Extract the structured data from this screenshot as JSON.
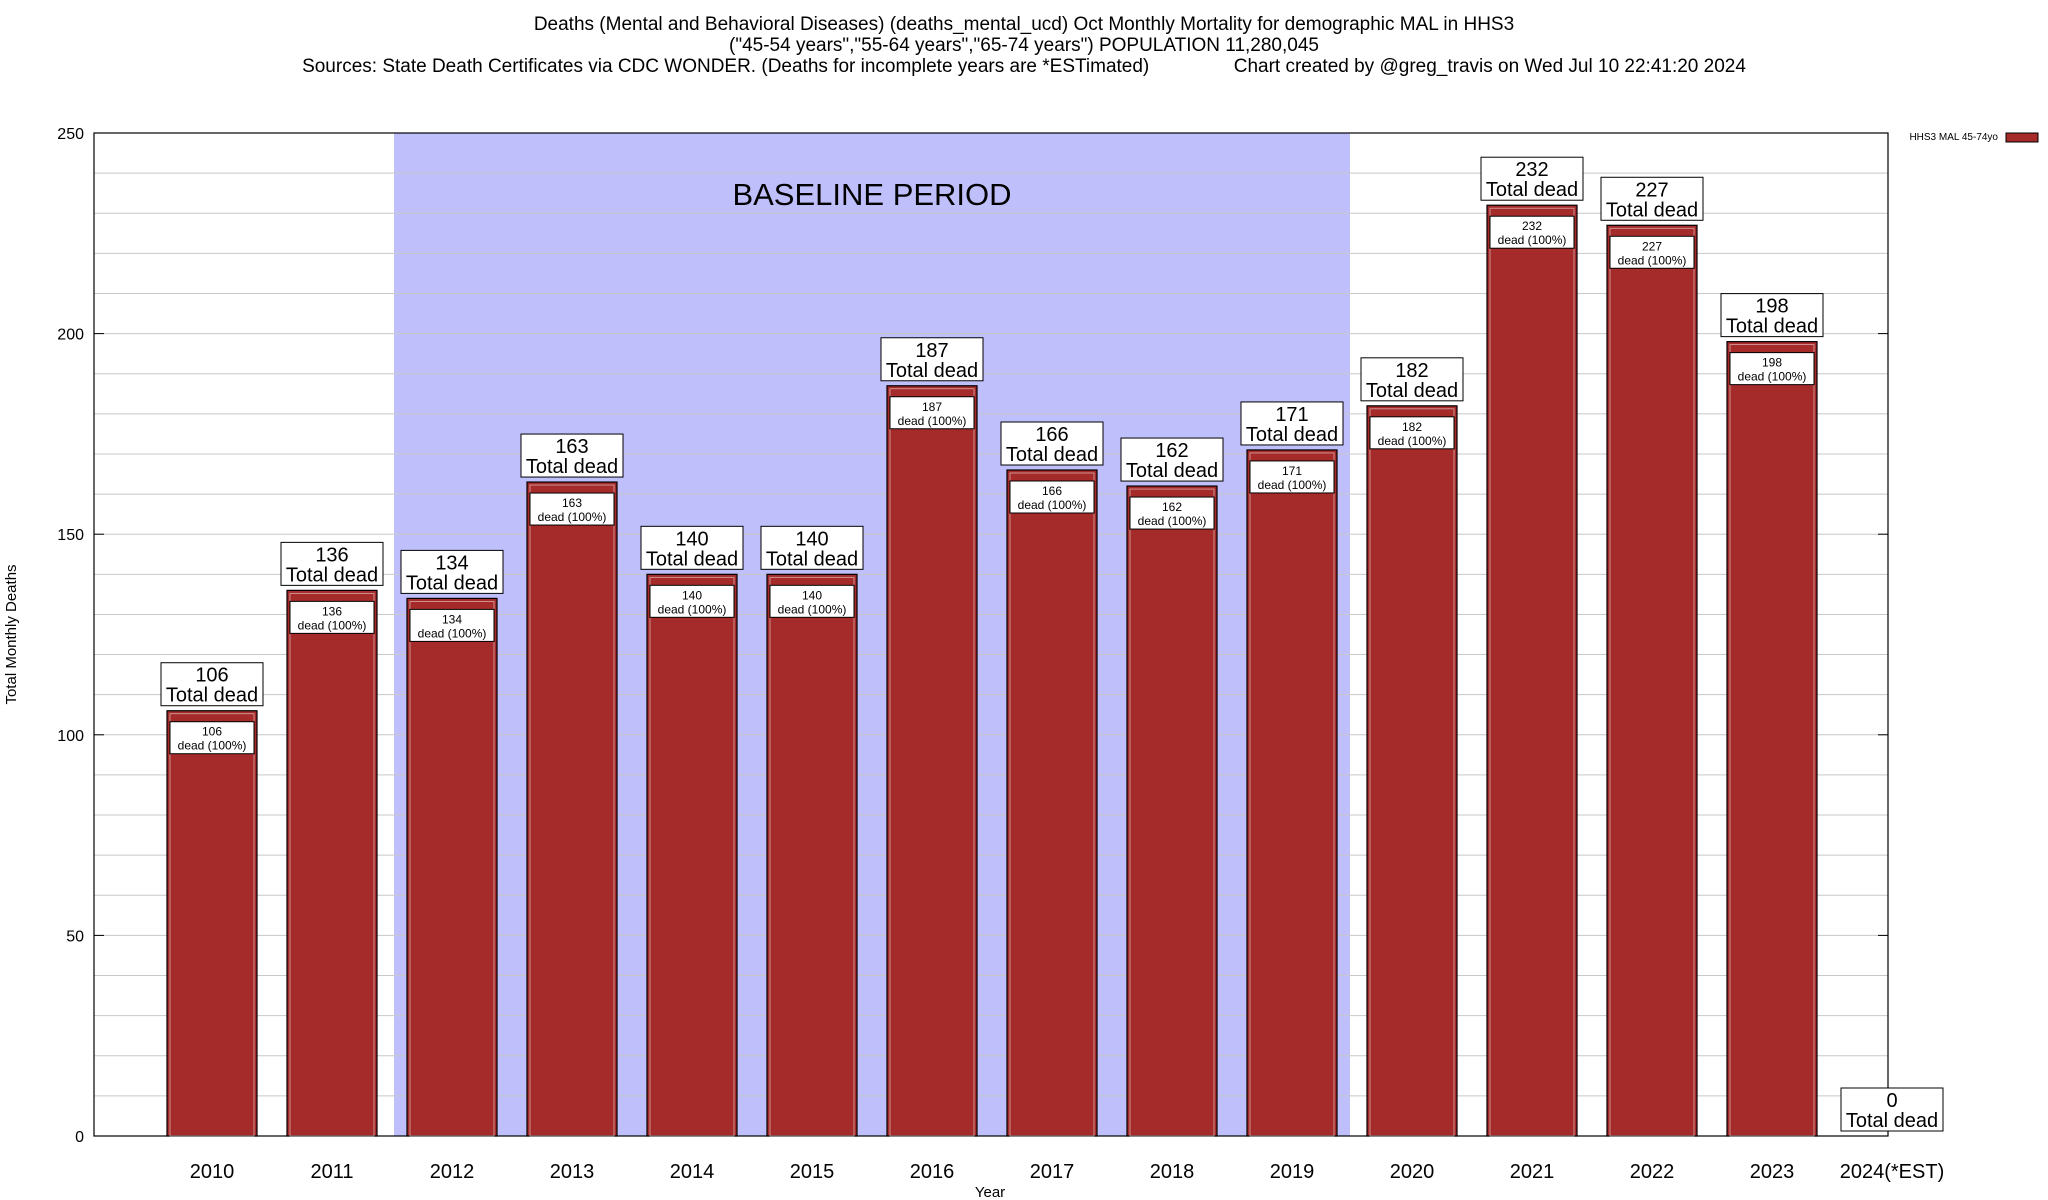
{
  "titles": {
    "line1": "Deaths (Mental and Behavioral Diseases) (deaths_mental_ucd) Oct Monthly Mortality for demographic MAL in HHS3",
    "line2": "(\"45-54 years\",\"55-64 years\",\"65-74 years\") POPULATION 11,280,045",
    "line3": "Sources: State Death Certificates via CDC WONDER. (Deaths for incomplete years are *ESTimated)                Chart created by @greg_travis on Wed Jul 10 22:41:20 2024"
  },
  "chart_data": {
    "type": "bar",
    "xlabel": "Year",
    "ylabel": "Total Monthly Deaths",
    "ylim": [
      0,
      250
    ],
    "y_major_ticks": [
      0,
      50,
      100,
      150,
      200,
      250
    ],
    "y_minor_step": 10,
    "grid": true,
    "legend": {
      "position": "top-right",
      "label": "HHS3 MAL 45-74yo"
    },
    "categories": [
      "2010",
      "2011",
      "2012",
      "2013",
      "2014",
      "2015",
      "2016",
      "2017",
      "2018",
      "2019",
      "2020",
      "2021",
      "2022",
      "2023",
      "2024(*EST)"
    ],
    "series": [
      {
        "name": "HHS3 MAL 45-74yo",
        "color": "#a52a2a",
        "values": [
          106,
          136,
          134,
          163,
          140,
          140,
          187,
          166,
          162,
          171,
          182,
          232,
          227,
          198,
          0
        ]
      }
    ],
    "top_label_suffix": "Total dead",
    "inner_label_suffix": "dead (100%)",
    "baseline": {
      "label": "BASELINE PERIOD",
      "from": "2012",
      "to": "2019",
      "color": "#bfbffc"
    }
  }
}
